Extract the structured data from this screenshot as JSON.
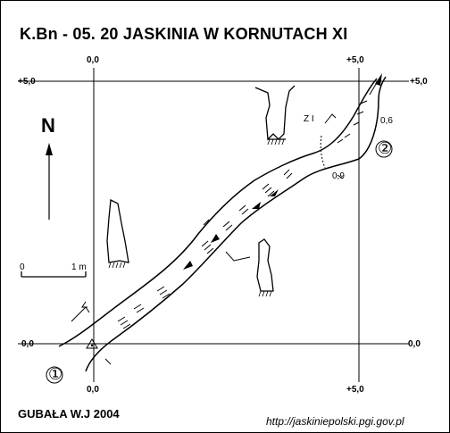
{
  "title": "K.Bn - 05. 20  JASKINIA W KORNUTACH XI",
  "grid_labels": {
    "top_left_x": "0,0",
    "top_right_x": "+5,0",
    "left_top_y": "+5,0",
    "right_top_y": "+5,0",
    "left_bottom_y": "0,0",
    "right_bottom_y": "0,0",
    "bottom_left_x": "0,0",
    "bottom_right_x": "+5,0"
  },
  "north_label": "N",
  "scale": {
    "start": "0",
    "end": "1 m"
  },
  "entrances": [
    "①",
    "②"
  ],
  "section_label": "Z I",
  "depth_labels": [
    "0,6",
    "0,9"
  ],
  "author": "GUBAŁA W.J 2004",
  "source_url": "http://jaskiniepolski.pgi.gov.pl"
}
